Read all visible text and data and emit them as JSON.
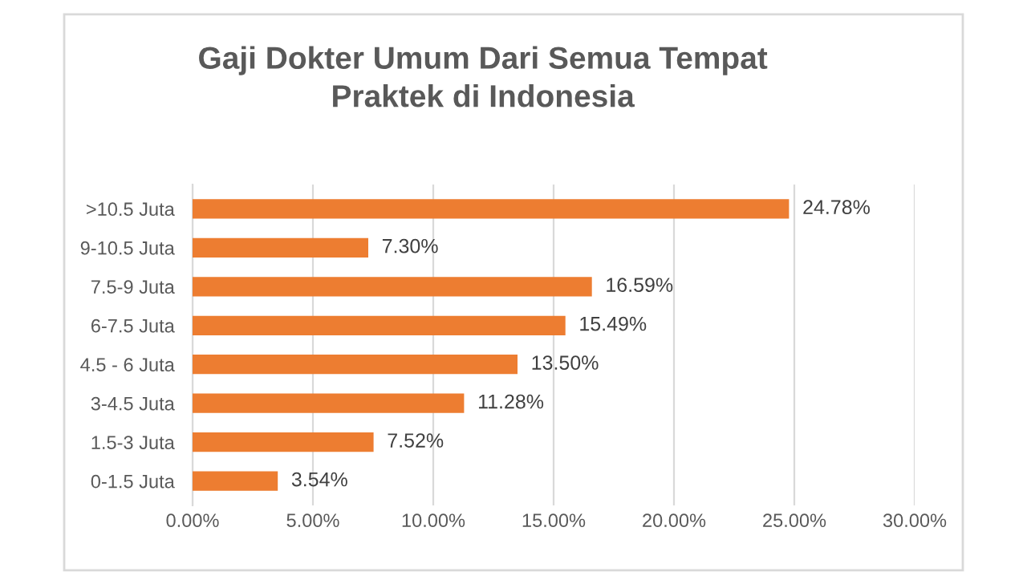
{
  "chart_data": {
    "type": "bar",
    "orientation": "horizontal",
    "title": "Gaji Dokter Umum Dari Semua Tempat\nPraktek di Indonesia",
    "categories": [
      ">10.5 Juta",
      "9-10.5 Juta",
      "7.5-9 Juta",
      "6-7.5 Juta",
      "4.5 - 6 Juta",
      "3-4.5 Juta",
      "1.5-3 Juta",
      "0-1.5 Juta"
    ],
    "values": [
      24.78,
      7.3,
      16.59,
      15.49,
      13.5,
      11.28,
      7.52,
      3.54
    ],
    "value_labels": [
      "24.78%",
      "7.30%",
      "16.59%",
      "15.49%",
      "13.50%",
      "11.28%",
      "7.52%",
      "3.54%"
    ],
    "color": "#ed7d31",
    "xlim": [
      0,
      30
    ],
    "xticks": [
      {
        "value": 0,
        "label": "0.00%"
      },
      {
        "value": 5,
        "label": "5.00%"
      },
      {
        "value": 10,
        "label": "10.00%"
      },
      {
        "value": 15,
        "label": "15.00%"
      },
      {
        "value": 20,
        "label": "20.00%"
      },
      {
        "value": 25,
        "label": "25.00%"
      },
      {
        "value": 30,
        "label": "30.00%"
      }
    ],
    "grid": "x"
  }
}
